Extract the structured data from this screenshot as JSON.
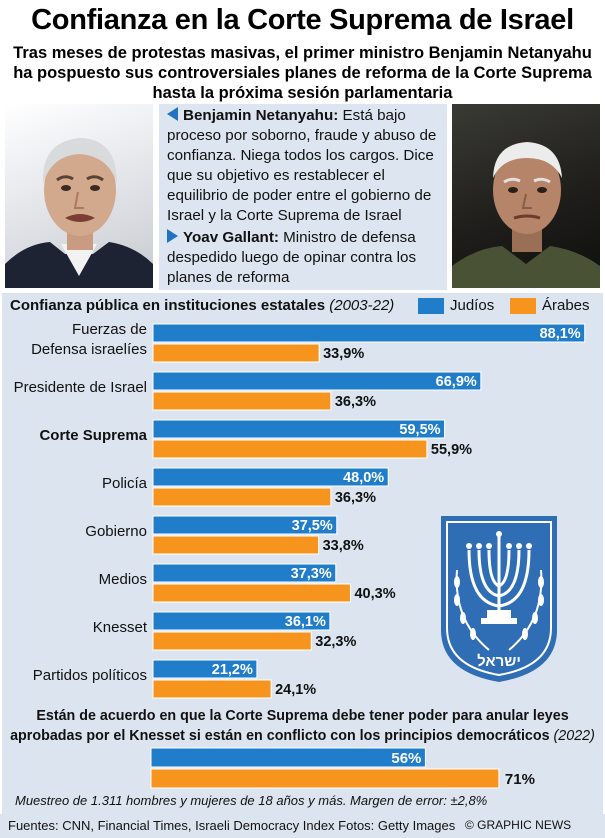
{
  "header": {
    "title": "Confianza en la Corte Suprema de Israel",
    "subtitle": "Tras meses de protestas masivas, el primer ministro Benjamin Netanyahu ha pospuesto sus controversiales planes de reforma de la Corte Suprema hasta la próxima sesión parlamentaria"
  },
  "bios": [
    {
      "name": "Benjamin Netanyahu:",
      "text": " Está bajo proceso por soborno, fraude y abuso de confianza. Niega todos los cargos. Dice que su objetivo es restablecer el equilibrio de poder entre el gobierno de Israel y la Corte Suprema de Israel"
    },
    {
      "name": "Yoav Gallant:",
      "text": " Ministro de defensa despedido luego de opinar contra los planes de reforma"
    }
  ],
  "colors": {
    "jews": "#1f7dc9",
    "arabs": "#f7941d",
    "panel": "#dce5ef",
    "emblem": "#2f6db5"
  },
  "chart_data": [
    {
      "type": "bar",
      "title": "Confianza pública en instituciones estatales",
      "period": "(2003-22)",
      "categories": [
        "Fuerzas de Defensa israelíes",
        "Presidente de Israel",
        "Corte Suprema",
        "Policía",
        "Gobierno",
        "Medios",
        "Knesset",
        "Partidos políticos"
      ],
      "category_lines": [
        [
          "Fuerzas de",
          "Defensa israelíes"
        ],
        [
          "Presidente de Israel"
        ],
        [
          "Corte Suprema"
        ],
        [
          "Policía"
        ],
        [
          "Gobierno"
        ],
        [
          "Medios"
        ],
        [
          "Knesset"
        ],
        [
          "Partidos políticos"
        ]
      ],
      "bold_category": "Corte Suprema",
      "series": [
        {
          "name": "Judíos",
          "values": [
            88.1,
            66.9,
            59.5,
            48.0,
            37.5,
            37.3,
            36.1,
            21.2
          ],
          "labels": [
            "88,1%",
            "66,9%",
            "59,5%",
            "48,0%",
            "37,5%",
            "37,3%",
            "36,1%",
            "21,2%"
          ]
        },
        {
          "name": "Árabes",
          "values": [
            33.9,
            36.3,
            55.9,
            36.3,
            33.8,
            40.3,
            32.3,
            24.1
          ],
          "labels": [
            "33,9%",
            "36,3%",
            "55,9%",
            "36,3%",
            "33,8%",
            "40,3%",
            "32,3%",
            "24,1%"
          ]
        }
      ],
      "legend_position": "top-right",
      "grid": false
    },
    {
      "type": "bar",
      "title": "Están de acuerdo en que la Corte Suprema debe tener poder para anular leyes aprobadas por el Knesset si están en conflicto con los principios democráticos",
      "year": "(2022)",
      "series": [
        {
          "name": "Judíos",
          "values": [
            56
          ],
          "labels": [
            "56%"
          ]
        },
        {
          "name": "Árabes",
          "values": [
            71
          ],
          "labels": [
            "71%"
          ]
        }
      ]
    }
  ],
  "emblem_text": "ישראל",
  "footnote": "Muestreo de 1.311 hombres y mujeres de 18 años y más. Margen de error: ±2,8%",
  "footer": {
    "sources": "Fuentes: CNN, Financial Times, Israeli Democracy Index  Fotos: Getty Images",
    "credit": "© GRAPHIC NEWS"
  }
}
